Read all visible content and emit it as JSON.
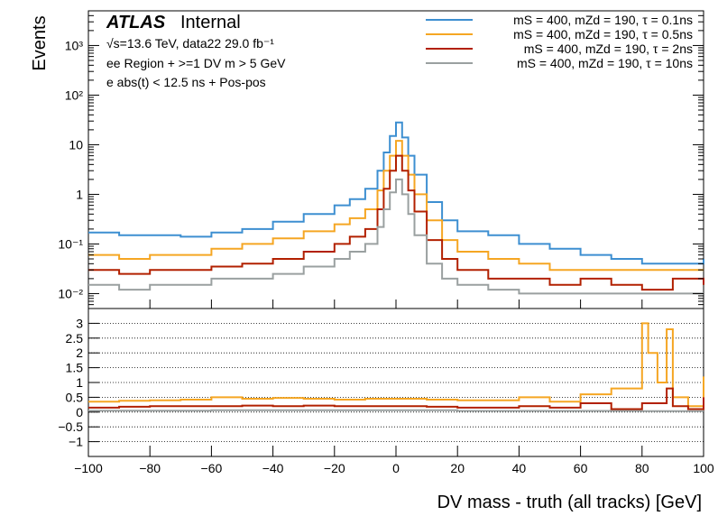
{
  "chart_data": [
    {
      "type": "line",
      "xlabel": "DV mass - truth (all tracks) [GeV]",
      "ylabel": "Events",
      "xlim": [
        -100,
        100
      ],
      "ylim": [
        0.005,
        5000
      ],
      "log_y": true,
      "grid": false,
      "legend_position": "top-right",
      "labels": {
        "experiment": "ATLAS",
        "status": "Internal",
        "energy_line": "√s=13.6 TeV, data22 29.0 fb⁻¹",
        "region_line": "ee Region + >=1 DV m > 5 GeV",
        "cut_line": "e abs(t) < 12.5 ns + Pos-pos"
      },
      "y_ticks": [
        {
          "value": 0.01,
          "label": "10⁻²"
        },
        {
          "value": 0.1,
          "label": "10⁻¹"
        },
        {
          "value": 1,
          "label": "1"
        },
        {
          "value": 10,
          "label": "10"
        },
        {
          "value": 100,
          "label": "10²"
        },
        {
          "value": 1000,
          "label": "10³"
        }
      ],
      "series": [
        {
          "name": "mS = 400, mZd = 190, τ = 0.1ns",
          "color": "#3d8fd1",
          "x": [
            -100,
            -90,
            -80,
            -70,
            -60,
            -50,
            -40,
            -30,
            -20,
            -15,
            -10,
            -6,
            -4,
            -2,
            0,
            2,
            4,
            6,
            10,
            15,
            20,
            30,
            40,
            50,
            60,
            70,
            80,
            90,
            100
          ],
          "y": [
            0.17,
            0.15,
            0.15,
            0.14,
            0.17,
            0.2,
            0.28,
            0.4,
            0.6,
            0.8,
            1.3,
            3,
            7,
            15,
            28,
            14,
            6,
            2.5,
            0.7,
            0.3,
            0.18,
            0.15,
            0.1,
            0.08,
            0.06,
            0.05,
            0.04,
            0.04,
            0.05
          ]
        },
        {
          "name": "mS = 400, mZd = 190, τ = 0.5ns",
          "color": "#f5a623",
          "x": [
            -100,
            -90,
            -80,
            -70,
            -60,
            -50,
            -40,
            -30,
            -20,
            -15,
            -10,
            -6,
            -4,
            -2,
            0,
            2,
            4,
            6,
            10,
            15,
            20,
            30,
            40,
            50,
            60,
            70,
            80,
            90,
            100
          ],
          "y": [
            0.06,
            0.05,
            0.06,
            0.06,
            0.08,
            0.1,
            0.13,
            0.18,
            0.25,
            0.33,
            0.5,
            1.2,
            3,
            6,
            12,
            6,
            2.5,
            1,
            0.3,
            0.12,
            0.07,
            0.05,
            0.04,
            0.03,
            0.03,
            0.03,
            0.03,
            0.03,
            0.03
          ]
        },
        {
          "name": "mS = 400, mZd = 190, τ = 2ns",
          "color": "#b22000",
          "x": [
            -100,
            -90,
            -80,
            -70,
            -60,
            -50,
            -40,
            -30,
            -20,
            -15,
            -10,
            -6,
            -4,
            -2,
            0,
            2,
            4,
            6,
            10,
            15,
            20,
            30,
            40,
            50,
            60,
            70,
            80,
            90,
            100
          ],
          "y": [
            0.03,
            0.025,
            0.03,
            0.03,
            0.035,
            0.04,
            0.05,
            0.07,
            0.1,
            0.14,
            0.2,
            0.5,
            1.3,
            3,
            6,
            3,
            1.2,
            0.45,
            0.12,
            0.05,
            0.03,
            0.02,
            0.02,
            0.015,
            0.02,
            0.015,
            0.012,
            0.02,
            0.015
          ]
        },
        {
          "name": "mS = 400, mZd = 190, τ = 10ns",
          "color": "#9aa0a0",
          "x": [
            -100,
            -90,
            -80,
            -70,
            -60,
            -50,
            -40,
            -30,
            -20,
            -15,
            -10,
            -6,
            -4,
            -2,
            0,
            2,
            4,
            6,
            10,
            15,
            20,
            30,
            40,
            50,
            60,
            70,
            80,
            90,
            100
          ],
          "y": [
            0.015,
            0.012,
            0.015,
            0.015,
            0.02,
            0.02,
            0.025,
            0.035,
            0.05,
            0.07,
            0.1,
            0.22,
            0.5,
            1.1,
            2,
            1,
            0.4,
            0.15,
            0.04,
            0.02,
            0.015,
            0.012,
            0.01,
            0.01,
            0.01,
            0.01,
            0.01,
            0.01,
            0.01
          ]
        }
      ]
    },
    {
      "type": "line",
      "xlabel": "DV mass - truth (all tracks) [GeV]",
      "ylabel": "",
      "xlim": [
        -100,
        100
      ],
      "ylim": [
        -1.5,
        3.5
      ],
      "grid": true,
      "y_ticks": [
        {
          "value": -1,
          "label": "−1"
        },
        {
          "value": -0.5,
          "label": "−0.5"
        },
        {
          "value": 0,
          "label": "0"
        },
        {
          "value": 0.5,
          "label": "0.5"
        },
        {
          "value": 1,
          "label": "1"
        },
        {
          "value": 1.5,
          "label": "1.5"
        },
        {
          "value": 2,
          "label": "2"
        },
        {
          "value": 2.5,
          "label": "2.5"
        },
        {
          "value": 3,
          "label": "3"
        }
      ],
      "x_ticks": [
        {
          "value": -100,
          "label": "−100"
        },
        {
          "value": -80,
          "label": "−80"
        },
        {
          "value": -60,
          "label": "−60"
        },
        {
          "value": -40,
          "label": "−40"
        },
        {
          "value": -20,
          "label": "−20"
        },
        {
          "value": 0,
          "label": "0"
        },
        {
          "value": 20,
          "label": "20"
        },
        {
          "value": 40,
          "label": "40"
        },
        {
          "value": 60,
          "label": "60"
        },
        {
          "value": 80,
          "label": "80"
        },
        {
          "value": 100,
          "label": "100"
        }
      ],
      "series": [
        {
          "color": "#f5a623",
          "x": [
            -100,
            -90,
            -80,
            -70,
            -60,
            -50,
            -40,
            -30,
            -20,
            -10,
            0,
            10,
            20,
            30,
            40,
            50,
            60,
            70,
            80,
            82,
            85,
            88,
            90,
            95,
            100
          ],
          "y": [
            0.35,
            0.38,
            0.4,
            0.42,
            0.5,
            0.45,
            0.48,
            0.45,
            0.42,
            0.45,
            0.45,
            0.42,
            0.4,
            0.4,
            0.5,
            0.35,
            0.6,
            0.8,
            3,
            2,
            1,
            2.8,
            0.5,
            0.2,
            1.2
          ]
        },
        {
          "color": "#b22000",
          "x": [
            -100,
            -90,
            -80,
            -70,
            -60,
            -50,
            -40,
            -30,
            -20,
            -10,
            0,
            10,
            20,
            30,
            40,
            50,
            60,
            70,
            80,
            88,
            90,
            95,
            100
          ],
          "y": [
            0.15,
            0.18,
            0.2,
            0.2,
            0.2,
            0.22,
            0.2,
            0.22,
            0.2,
            0.2,
            0.2,
            0.18,
            0.15,
            0.15,
            0.2,
            0.15,
            0.3,
            0.1,
            0.3,
            0.8,
            0.2,
            0.1,
            0.5
          ]
        },
        {
          "color": "#9aa0a0",
          "x": [
            -100,
            -80,
            -60,
            -40,
            -20,
            0,
            20,
            40,
            60,
            80,
            100
          ],
          "y": [
            0.05,
            0.05,
            0.06,
            0.06,
            0.06,
            0.06,
            0.04,
            0.04,
            0.04,
            0.03,
            0.03
          ]
        }
      ]
    }
  ]
}
